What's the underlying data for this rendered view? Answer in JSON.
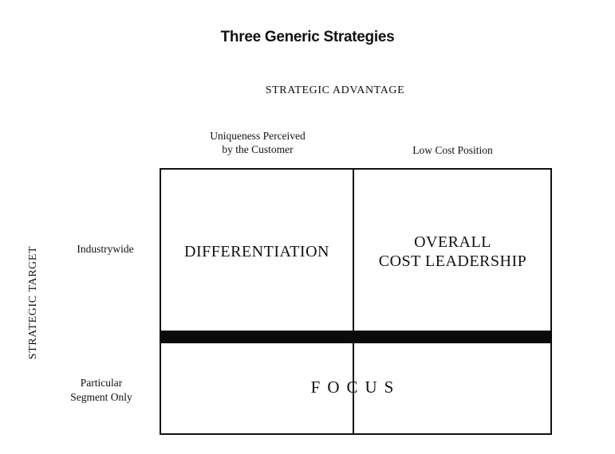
{
  "title": "Three Generic Strategies",
  "axes": {
    "horizontal": "STRATEGIC ADVANTAGE",
    "vertical": "STRATEGIC TARGET"
  },
  "columns": [
    {
      "label_line1": "Uniqueness Perceived",
      "label_line2": "by the Customer"
    },
    {
      "label_line1": "Low Cost Position"
    }
  ],
  "rows": [
    {
      "label_line1": "Industrywide"
    },
    {
      "label_line1": "Particular",
      "label_line2": "Segment Only"
    }
  ],
  "cells": {
    "differentiation": "DIFFERENTIATION",
    "cost_leadership_line1": "OVERALL",
    "cost_leadership_line2": "COST LEADERSHIP",
    "focus": "FOCUS"
  }
}
